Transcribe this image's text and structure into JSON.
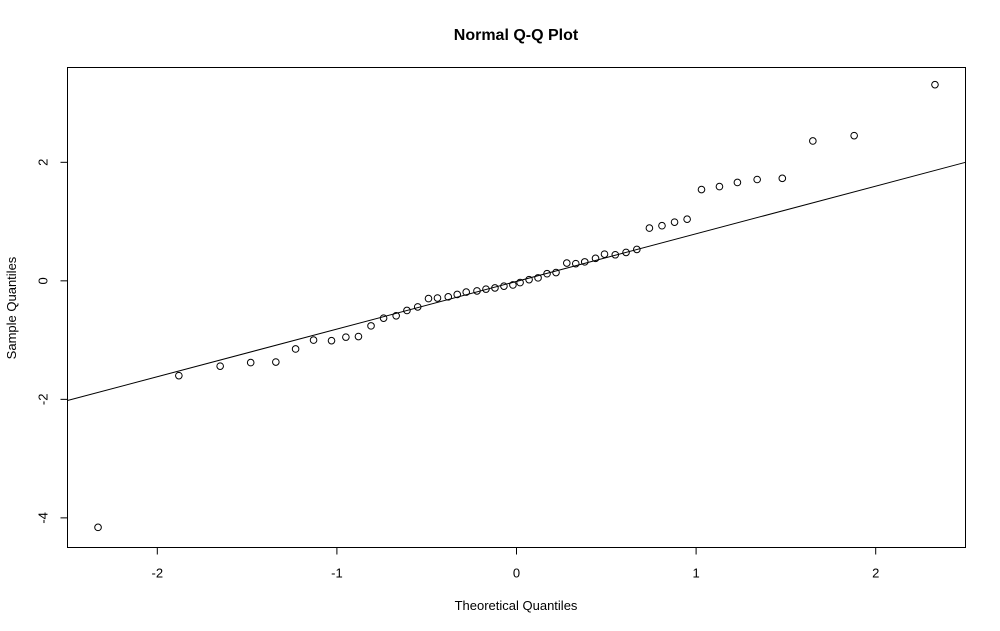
{
  "chart_data": {
    "type": "scatter",
    "title": "Normal Q-Q Plot",
    "xlabel": "Theoretical Quantiles",
    "ylabel": "Sample Quantiles",
    "xlim": [
      -2.5,
      2.5
    ],
    "ylim": [
      -4.5,
      3.6
    ],
    "xticks": [
      -2,
      -1,
      0,
      1,
      2
    ],
    "yticks": [
      -4,
      -2,
      0,
      2
    ],
    "xtick_labels": [
      "-2",
      "-1",
      "0",
      "1",
      "2"
    ],
    "ytick_labels": [
      "-4",
      "-2",
      "0",
      "2"
    ],
    "grid": false,
    "reference_line": {
      "x": [
        -2.5,
        2.5
      ],
      "y": [
        -2.02,
        2.0
      ]
    },
    "points": [
      {
        "x": -2.33,
        "y": -4.16
      },
      {
        "x": -1.88,
        "y": -1.6
      },
      {
        "x": -1.65,
        "y": -1.44
      },
      {
        "x": -1.48,
        "y": -1.38
      },
      {
        "x": -1.34,
        "y": -1.37
      },
      {
        "x": -1.23,
        "y": -1.15
      },
      {
        "x": -1.13,
        "y": -1.0
      },
      {
        "x": -1.03,
        "y": -1.01
      },
      {
        "x": -0.95,
        "y": -0.95
      },
      {
        "x": -0.88,
        "y": -0.94
      },
      {
        "x": -0.81,
        "y": -0.76
      },
      {
        "x": -0.74,
        "y": -0.63
      },
      {
        "x": -0.67,
        "y": -0.59
      },
      {
        "x": -0.61,
        "y": -0.5
      },
      {
        "x": -0.55,
        "y": -0.44
      },
      {
        "x": -0.49,
        "y": -0.3
      },
      {
        "x": -0.44,
        "y": -0.29
      },
      {
        "x": -0.38,
        "y": -0.27
      },
      {
        "x": -0.33,
        "y": -0.23
      },
      {
        "x": -0.28,
        "y": -0.19
      },
      {
        "x": -0.22,
        "y": -0.17
      },
      {
        "x": -0.17,
        "y": -0.14
      },
      {
        "x": -0.12,
        "y": -0.12
      },
      {
        "x": -0.07,
        "y": -0.09
      },
      {
        "x": -0.02,
        "y": -0.07
      },
      {
        "x": 0.02,
        "y": -0.03
      },
      {
        "x": 0.07,
        "y": 0.02
      },
      {
        "x": 0.12,
        "y": 0.05
      },
      {
        "x": 0.17,
        "y": 0.12
      },
      {
        "x": 0.22,
        "y": 0.14
      },
      {
        "x": 0.28,
        "y": 0.3
      },
      {
        "x": 0.33,
        "y": 0.29
      },
      {
        "x": 0.38,
        "y": 0.32
      },
      {
        "x": 0.44,
        "y": 0.38
      },
      {
        "x": 0.49,
        "y": 0.45
      },
      {
        "x": 0.55,
        "y": 0.44
      },
      {
        "x": 0.61,
        "y": 0.48
      },
      {
        "x": 0.67,
        "y": 0.53
      },
      {
        "x": 0.74,
        "y": 0.89
      },
      {
        "x": 0.81,
        "y": 0.93
      },
      {
        "x": 0.88,
        "y": 0.99
      },
      {
        "x": 0.95,
        "y": 1.04
      },
      {
        "x": 1.03,
        "y": 1.54
      },
      {
        "x": 1.13,
        "y": 1.59
      },
      {
        "x": 1.23,
        "y": 1.66
      },
      {
        "x": 1.34,
        "y": 1.71
      },
      {
        "x": 1.48,
        "y": 1.73
      },
      {
        "x": 1.65,
        "y": 2.36
      },
      {
        "x": 1.88,
        "y": 2.45
      },
      {
        "x": 2.33,
        "y": 3.31
      }
    ]
  }
}
